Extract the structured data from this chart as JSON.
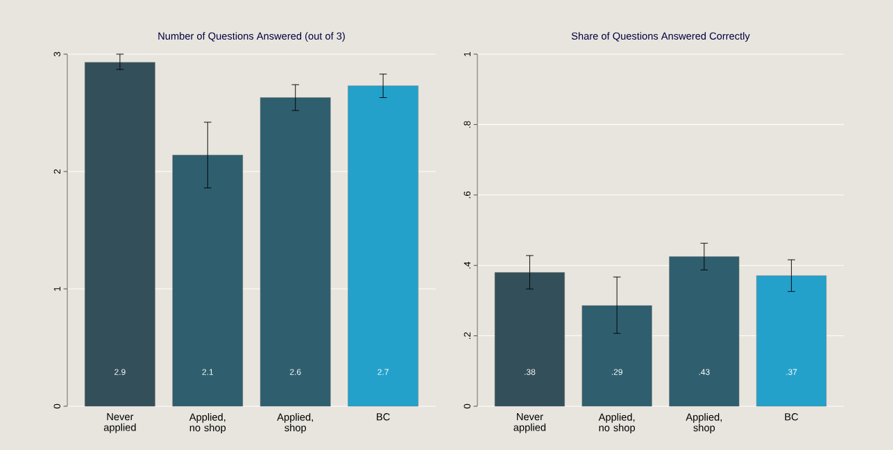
{
  "chart_data": [
    {
      "type": "bar",
      "title": "Number of Questions Answered (out of 3)",
      "categories": [
        "Never applied",
        "Applied, no shop",
        "Applied, shop",
        "BC"
      ],
      "values": [
        2.93,
        2.14,
        2.63,
        2.73
      ],
      "errors": [
        [
          2.87,
          3.0
        ],
        [
          1.86,
          2.42
        ],
        [
          2.52,
          2.74
        ],
        [
          2.63,
          2.83
        ]
      ],
      "value_labels": [
        "2.9",
        "2.1",
        "2.6",
        "2.7"
      ],
      "colors": [
        "#334f5a",
        "#2f5f6f",
        "#2f5f6f",
        "#24a1cb"
      ],
      "ylim": [
        0,
        3
      ],
      "yticks": [
        0,
        1,
        2,
        3
      ],
      "grid": "y"
    },
    {
      "type": "bar",
      "title": "Share of Questions Answered Correctly",
      "categories": [
        "Never applied",
        "Applied, no shop",
        "Applied, shop",
        "BC"
      ],
      "values": [
        0.38,
        0.286,
        0.425,
        0.371
      ],
      "errors": [
        [
          0.333,
          0.428
        ],
        [
          0.207,
          0.367
        ],
        [
          0.387,
          0.463
        ],
        [
          0.326,
          0.416
        ]
      ],
      "value_labels": [
        ".38",
        ".29",
        ".43",
        ".37"
      ],
      "colors": [
        "#334f5a",
        "#2f5f6f",
        "#2f5f6f",
        "#24a1cb"
      ],
      "ylim": [
        0,
        1
      ],
      "yticks": [
        0,
        {
          "value": 0.2,
          "label": ".2"
        },
        {
          "value": 0.4,
          "label": ".4"
        },
        {
          "value": 0.6,
          "label": ".6"
        },
        {
          "value": 0.8,
          "label": ".8"
        },
        1
      ],
      "grid": "y"
    }
  ]
}
